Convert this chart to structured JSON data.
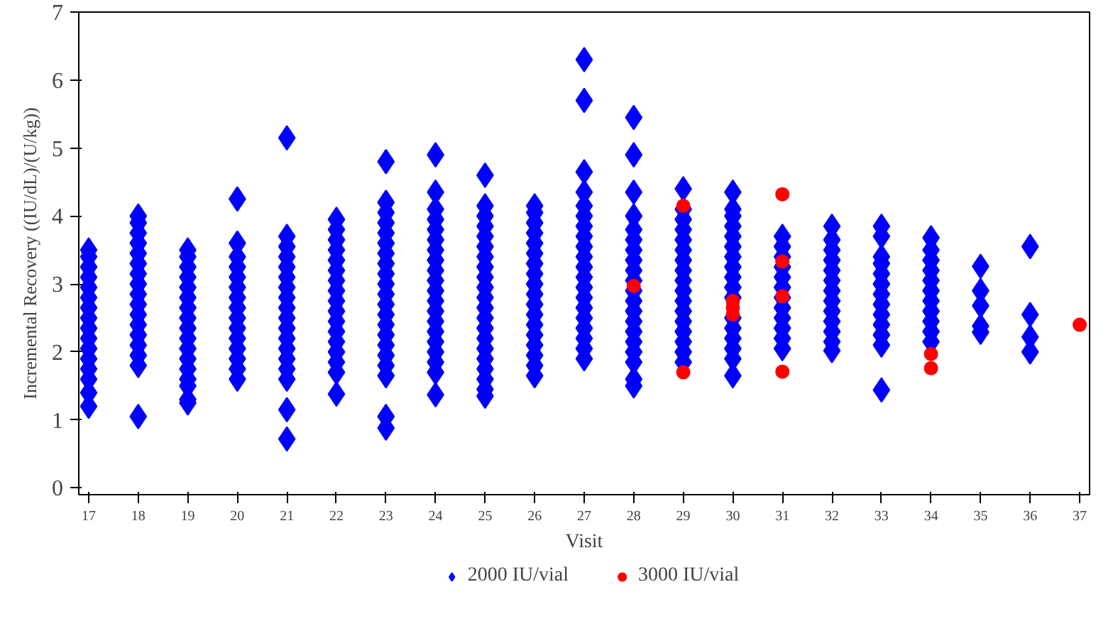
{
  "chart_data": {
    "type": "scatter",
    "xlabel": "Visit",
    "ylabel": "Incremental Recovery ((IU/dL)/(U/kg))",
    "xlim": [
      16.8,
      37.2
    ],
    "xticks": [
      17,
      18,
      19,
      20,
      21,
      22,
      23,
      24,
      25,
      26,
      27,
      28,
      29,
      30,
      31,
      32,
      33,
      34,
      35,
      36,
      37
    ],
    "ylim": [
      -0.1,
      7
    ],
    "yticks": [
      0,
      1,
      2,
      3,
      4,
      5,
      6,
      7
    ],
    "grid": false,
    "legend": "bottom",
    "series": [
      {
        "name": "2000 IU/vial",
        "color": "#0000ff",
        "marker": "diamond",
        "x": [
          17,
          17,
          17,
          17,
          17,
          17,
          17,
          17,
          17,
          17,
          17,
          17,
          17,
          17,
          17,
          17,
          18,
          18,
          18,
          18,
          18,
          18,
          18,
          18,
          18,
          18,
          18,
          18,
          18,
          18,
          18,
          18,
          18,
          19,
          19,
          19,
          19,
          19,
          19,
          19,
          19,
          19,
          19,
          19,
          19,
          19,
          19,
          19,
          19,
          19,
          20,
          20,
          20,
          20,
          20,
          20,
          20,
          20,
          20,
          20,
          20,
          20,
          20,
          20,
          20,
          21,
          21,
          21,
          21,
          21,
          21,
          21,
          21,
          21,
          21,
          21,
          21,
          21,
          21,
          21,
          21,
          21,
          21,
          22,
          22,
          22,
          22,
          22,
          22,
          22,
          22,
          22,
          22,
          22,
          22,
          22,
          22,
          22,
          22,
          22,
          23,
          23,
          23,
          23,
          23,
          23,
          23,
          23,
          23,
          23,
          23,
          23,
          23,
          23,
          23,
          23,
          23,
          23,
          23,
          23,
          23,
          24,
          24,
          24,
          24,
          24,
          24,
          24,
          24,
          24,
          24,
          24,
          24,
          24,
          24,
          24,
          24,
          24,
          24,
          24,
          24,
          25,
          25,
          25,
          25,
          25,
          25,
          25,
          25,
          25,
          25,
          25,
          25,
          25,
          25,
          25,
          25,
          25,
          25,
          25,
          25,
          25,
          26,
          26,
          26,
          26,
          26,
          26,
          26,
          26,
          26,
          26,
          26,
          26,
          26,
          26,
          26,
          26,
          26,
          26,
          27,
          27,
          27,
          27,
          27,
          27,
          27,
          27,
          27,
          27,
          27,
          27,
          27,
          27,
          27,
          27,
          27,
          27,
          27,
          27,
          28,
          28,
          28,
          28,
          28,
          28,
          28,
          28,
          28,
          28,
          28,
          28,
          28,
          28,
          28,
          28,
          28,
          28,
          28,
          28,
          29,
          29,
          29,
          29,
          29,
          29,
          29,
          29,
          29,
          29,
          29,
          29,
          29,
          29,
          29,
          29,
          29,
          30,
          30,
          30,
          30,
          30,
          30,
          30,
          30,
          30,
          30,
          30,
          30,
          30,
          30,
          30,
          30,
          30,
          31,
          31,
          31,
          31,
          31,
          31,
          31,
          31,
          31,
          31,
          31,
          31,
          32,
          32,
          32,
          32,
          32,
          32,
          32,
          32,
          32,
          32,
          32,
          32,
          32,
          33,
          33,
          33,
          33,
          33,
          33,
          33,
          33,
          33,
          33,
          33,
          33,
          33,
          34,
          34,
          34,
          34,
          34,
          34,
          34,
          34,
          34,
          34,
          34,
          35,
          35,
          35,
          35,
          35,
          36,
          36,
          36,
          36
        ],
        "values": [
          1.2,
          1.4,
          1.6,
          1.75,
          1.9,
          2.05,
          2.2,
          2.35,
          2.5,
          2.65,
          2.8,
          2.95,
          3.1,
          3.25,
          3.4,
          3.5,
          1.05,
          1.8,
          1.95,
          2.1,
          2.25,
          2.4,
          2.55,
          2.7,
          2.85,
          3.0,
          3.15,
          3.3,
          3.45,
          3.6,
          3.75,
          3.9,
          4.0,
          1.25,
          1.3,
          1.5,
          1.6,
          1.75,
          1.9,
          2.05,
          2.2,
          2.35,
          2.5,
          2.65,
          2.8,
          2.95,
          3.1,
          3.25,
          3.4,
          3.5,
          1.6,
          1.75,
          1.9,
          2.05,
          2.2,
          2.35,
          2.5,
          2.65,
          2.8,
          2.95,
          3.1,
          3.25,
          3.4,
          3.6,
          4.25,
          0.72,
          1.15,
          1.6,
          1.75,
          1.9,
          2.05,
          2.2,
          2.35,
          2.5,
          2.65,
          2.8,
          2.95,
          3.1,
          3.25,
          3.4,
          3.55,
          3.7,
          5.15,
          1.38,
          1.7,
          1.85,
          2.0,
          2.15,
          2.3,
          2.45,
          2.6,
          2.75,
          2.9,
          3.05,
          3.2,
          3.35,
          3.5,
          3.65,
          3.8,
          3.95,
          0.88,
          1.05,
          1.65,
          1.8,
          1.95,
          2.1,
          2.25,
          2.4,
          2.55,
          2.7,
          2.85,
          3.0,
          3.15,
          3.3,
          3.45,
          3.6,
          3.75,
          3.9,
          4.05,
          4.2,
          4.8,
          1.37,
          1.7,
          1.85,
          2.0,
          2.15,
          2.3,
          2.45,
          2.6,
          2.75,
          2.9,
          3.05,
          3.2,
          3.35,
          3.5,
          3.65,
          3.8,
          3.95,
          4.1,
          4.35,
          4.9,
          1.35,
          1.45,
          1.6,
          1.75,
          1.9,
          2.05,
          2.2,
          2.35,
          2.5,
          2.65,
          2.8,
          2.95,
          3.1,
          3.25,
          3.4,
          3.55,
          3.7,
          3.85,
          4.0,
          4.15,
          4.6,
          1.65,
          1.8,
          1.95,
          2.1,
          2.25,
          2.4,
          2.55,
          2.7,
          2.85,
          3.0,
          3.15,
          3.3,
          3.45,
          3.6,
          3.75,
          3.9,
          4.05,
          4.15,
          1.9,
          2.05,
          2.2,
          2.35,
          2.5,
          2.65,
          2.8,
          2.95,
          3.1,
          3.25,
          3.4,
          3.55,
          3.7,
          3.85,
          4.0,
          4.15,
          4.35,
          4.65,
          5.7,
          6.3,
          1.5,
          1.6,
          1.85,
          2.0,
          2.15,
          2.3,
          2.45,
          2.6,
          2.75,
          2.9,
          3.05,
          3.2,
          3.35,
          3.5,
          3.65,
          3.8,
          4.0,
          4.35,
          4.9,
          5.45,
          1.85,
          2.0,
          2.15,
          2.3,
          2.45,
          2.6,
          2.75,
          2.9,
          3.05,
          3.2,
          3.35,
          3.5,
          3.65,
          3.8,
          3.95,
          4.1,
          4.4,
          1.65,
          1.9,
          2.05,
          2.2,
          2.35,
          2.5,
          2.8,
          2.95,
          3.1,
          3.25,
          3.4,
          3.55,
          3.7,
          3.85,
          4.0,
          4.1,
          4.35,
          2.05,
          2.2,
          2.35,
          2.5,
          2.65,
          2.8,
          2.95,
          3.1,
          3.25,
          3.4,
          3.55,
          3.7,
          2.02,
          2.15,
          2.3,
          2.45,
          2.6,
          2.75,
          2.9,
          3.05,
          3.2,
          3.35,
          3.5,
          3.65,
          3.85,
          1.44,
          2.1,
          2.25,
          2.4,
          2.55,
          2.7,
          2.85,
          3.0,
          3.15,
          3.3,
          3.4,
          3.7,
          3.85,
          2.15,
          2.3,
          2.45,
          2.6,
          2.75,
          2.9,
          3.05,
          3.2,
          3.35,
          3.5,
          3.68,
          2.29,
          2.38,
          2.68,
          2.9,
          3.26,
          2.0,
          2.22,
          2.55,
          3.55
        ]
      },
      {
        "name": "3000 IU/vial",
        "color": "#ff0000",
        "marker": "circle",
        "x": [
          28,
          29,
          29,
          30,
          30,
          30,
          31,
          31,
          31,
          31,
          34,
          34,
          37
        ],
        "values": [
          2.97,
          4.15,
          1.7,
          2.75,
          2.65,
          2.55,
          4.32,
          3.33,
          2.82,
          1.71,
          1.97,
          1.76,
          2.4
        ]
      }
    ]
  }
}
